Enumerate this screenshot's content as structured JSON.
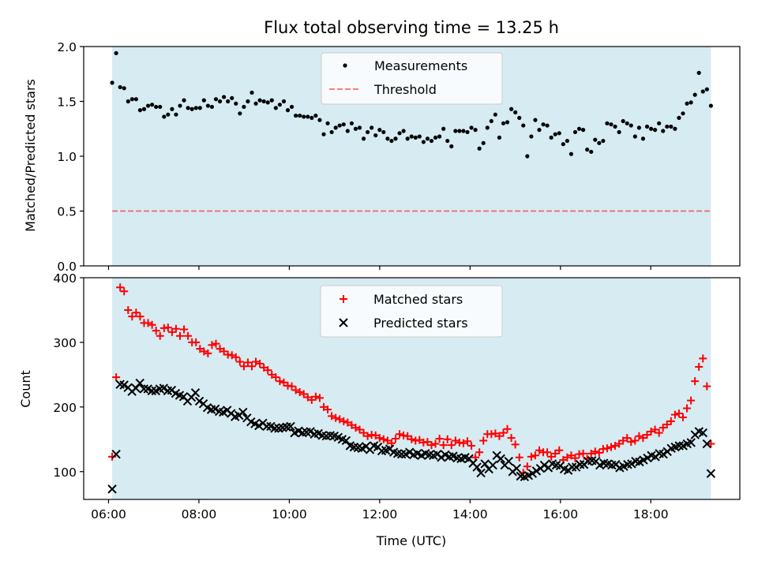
{
  "chart_data": {
    "title": "Flux total observing time = 13.25 h",
    "xlabel": "Time (UTC)",
    "x_ticks": [
      "06:00",
      "08:00",
      "10:00",
      "12:00",
      "14:00",
      "16:00",
      "18:00"
    ],
    "x_range_hours": [
      5.45,
      19.97
    ],
    "observing_span_hours": [
      6.08,
      19.33
    ],
    "colors": {
      "span": "#add8e6",
      "matched": "#ff0000",
      "predicted": "#000000",
      "threshold": "#ff0000",
      "measurements": "#000000"
    },
    "panels": [
      {
        "type": "scatter",
        "ylabel": "Matched/Predicted stars",
        "ylim": [
          0,
          2
        ],
        "y_ticks": [
          "0.0",
          "0.5",
          "1.0",
          "1.5",
          "2.0"
        ],
        "legend_position": "top-center",
        "series": [
          {
            "name": "Measurements",
            "x_range": [
              6.08,
              19.33
            ],
            "values": [
              1.67,
              1.94,
              1.63,
              1.62,
              1.5,
              1.52,
              1.52,
              1.42,
              1.43,
              1.46,
              1.47,
              1.45,
              1.45,
              1.36,
              1.38,
              1.43,
              1.38,
              1.46,
              1.51,
              1.44,
              1.43,
              1.44,
              1.44,
              1.51,
              1.46,
              1.45,
              1.52,
              1.5,
              1.54,
              1.5,
              1.53,
              1.48,
              1.39,
              1.45,
              1.5,
              1.58,
              1.48,
              1.51,
              1.5,
              1.49,
              1.51,
              1.44,
              1.47,
              1.5,
              1.42,
              1.45,
              1.37,
              1.37,
              1.36,
              1.36,
              1.35,
              1.37,
              1.33,
              1.2,
              1.3,
              1.22,
              1.26,
              1.28,
              1.29,
              1.23,
              1.3,
              1.25,
              1.26,
              1.16,
              1.22,
              1.26,
              1.19,
              1.24,
              1.22,
              1.16,
              1.14,
              1.16,
              1.21,
              1.23,
              1.16,
              1.18,
              1.17,
              1.18,
              1.13,
              1.16,
              1.14,
              1.17,
              1.18,
              1.25,
              1.14,
              1.09,
              1.23,
              1.23,
              1.23,
              1.22,
              1.26,
              1.24,
              1.07,
              1.12,
              1.26,
              1.32,
              1.38,
              1.17,
              1.3,
              1.31,
              1.43,
              1.4,
              1.35,
              1.28,
              1.0,
              1.18,
              1.33,
              1.24,
              1.29,
              1.28,
              1.17,
              1.2,
              1.21,
              1.11,
              1.14,
              1.02,
              1.22,
              1.25,
              1.24,
              1.06,
              1.04,
              1.15,
              1.12,
              1.14,
              1.3,
              1.29,
              1.27,
              1.22,
              1.32,
              1.3,
              1.28,
              1.18,
              1.26,
              1.16,
              1.27,
              1.25,
              1.24,
              1.3,
              1.23,
              1.27,
              1.27,
              1.25,
              1.35,
              1.39,
              1.48,
              1.49,
              1.56,
              1.76,
              1.59,
              1.61,
              1.46
            ]
          },
          {
            "name": "Threshold",
            "x_range": [
              6.08,
              19.33
            ],
            "values": [
              0.5,
              0.5
            ]
          }
        ]
      },
      {
        "type": "scatter",
        "ylabel": "Count",
        "ylim": [
          57,
          400
        ],
        "y_ticks": [
          "100",
          "200",
          "300",
          "400"
        ],
        "legend_position": "top-center",
        "series": [
          {
            "name": "Matched stars",
            "x_range": [
              6.08,
              19.33
            ],
            "values": [
              123,
              246,
              385,
              379,
              350,
              340,
              346,
              340,
              330,
              330,
              327,
              318,
              310,
              322,
              323,
              316,
              321,
              310,
              320,
              310,
              300,
              300,
              290,
              286,
              283,
              296,
              298,
              290,
              286,
              281,
              280,
              277,
              270,
              263,
              269,
              263,
              270,
              267,
              261,
              257,
              250,
              246,
              240,
              238,
              233,
              232,
              226,
              223,
              220,
              215,
              211,
              216,
              214,
              200,
              196,
              186,
              183,
              181,
              178,
              176,
              172,
              168,
              165,
              160,
              155,
              157,
              156,
              152,
              150,
              148,
              144,
              151,
              158,
              156,
              155,
              150,
              148,
              149,
              145,
              146,
              141,
              143,
              151,
              141,
              150,
              141,
              148,
              145,
              144,
              147,
              140,
              122,
              130,
              148,
              158,
              158,
              159,
              155,
              160,
              166,
              152,
              142,
              122,
              98,
              108,
              123,
              125,
              133,
              130,
              130,
              123,
              128,
              133,
              118,
              122,
              125,
              121,
              127,
              128,
              120,
              128,
              131,
              129,
              135,
              136,
              138,
              140,
              143,
              148,
              152,
              146,
              148,
              155,
              152,
              157,
              162,
              165,
              160,
              168,
              173,
              178,
              188,
              190,
              184,
              198,
              210,
              240,
              262,
              275,
              232,
              143
            ]
          },
          {
            "name": "Predicted stars",
            "x_range": [
              6.08,
              19.33
            ],
            "values": [
              73,
              127,
              235,
              234,
              230,
              224,
              229,
              237,
              228,
              228,
              225,
              225,
              228,
              229,
              225,
              226,
              221,
              218,
              216,
              209,
              215,
              222,
              209,
              205,
              199,
              196,
              197,
              193,
              192,
              195,
              190,
              185,
              187,
              192,
              183,
              177,
              174,
              171,
              175,
              170,
              170,
              167,
              167,
              168,
              169,
              170,
              160,
              163,
              160,
              161,
              162,
              158,
              159,
              156,
              155,
              156,
              155,
              153,
              150,
              148,
              140,
              138,
              137,
              136,
              139,
              134,
              140,
              138,
              132,
              133,
              135,
              130,
              128,
              127,
              127,
              130,
              126,
              128,
              125,
              128,
              126,
              125,
              127,
              122,
              126,
              123,
              124,
              121,
              120,
              122,
              120,
              113,
              107,
              98,
              112,
              104,
              110,
              125,
              120,
              110,
              116,
              100,
              105,
              93,
              92,
              94,
              97,
              101,
              105,
              110,
              106,
              112,
              110,
              109,
              104,
              102,
              107,
              107,
              111,
              111,
              116,
              117,
              116,
              110,
              113,
              112,
              110,
              111,
              106,
              108,
              111,
              112,
              116,
              115,
              118,
              121,
              125,
              123,
              128,
              127,
              131,
              136,
              138,
              140,
              140,
              143,
              145,
              157,
              162,
              160,
              143,
              97
            ]
          }
        ]
      }
    ]
  }
}
